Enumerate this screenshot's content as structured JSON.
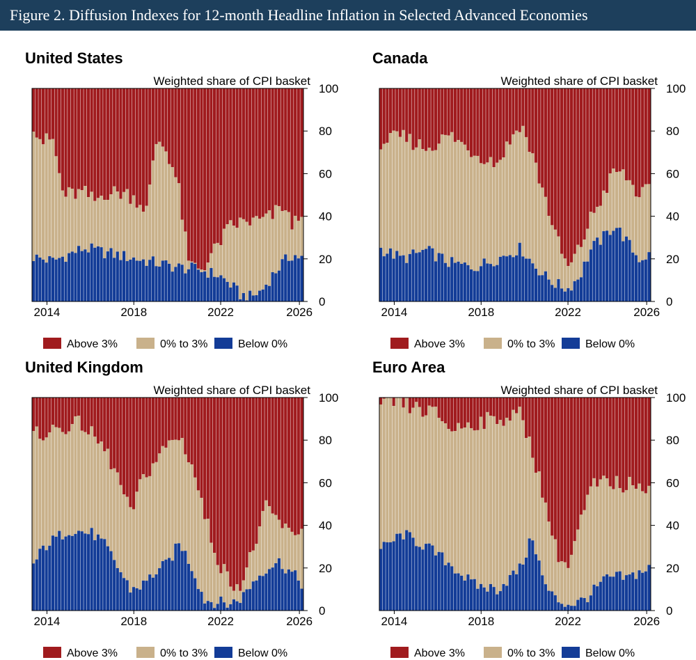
{
  "figure_title": "Figure 2. Diffusion Indexes for 12-month Headline Inflation in Selected Advanced Economies",
  "colors": {
    "above": "#a01b1e",
    "mid": "#c9b18b",
    "below": "#133c97",
    "banner": "#1d3f5c"
  },
  "chart_data": [
    {
      "type": "bar",
      "stacked": true,
      "title": "United States",
      "ylabel": "Weighted share of CPI basket",
      "ylim": [
        0,
        100
      ],
      "yticks": [
        "0",
        "20",
        "40",
        "60",
        "80",
        "100"
      ],
      "xticks": [
        "2014",
        "2018",
        "2022",
        "2026"
      ],
      "legend": [
        "Above 3%",
        "0% to 3%",
        "Below 0%"
      ],
      "legend_position": "bottom",
      "series_anchors": {
        "below": [
          [
            0,
            21
          ],
          [
            2,
            19
          ],
          [
            5,
            25
          ],
          [
            8,
            22
          ],
          [
            10,
            20
          ],
          [
            12,
            18
          ],
          [
            14,
            16
          ],
          [
            16,
            15
          ],
          [
            18,
            12
          ],
          [
            19,
            8
          ],
          [
            20,
            3
          ],
          [
            21,
            2
          ],
          [
            22,
            5
          ],
          [
            23,
            12
          ],
          [
            24,
            18
          ],
          [
            25,
            22
          ],
          [
            26,
            20
          ],
          [
            27,
            17
          ],
          [
            28,
            15
          ]
        ],
        "top": [
          [
            0,
            85
          ],
          [
            1,
            75
          ],
          [
            2,
            76
          ],
          [
            3,
            50
          ],
          [
            5,
            51
          ],
          [
            6,
            47
          ],
          [
            7,
            51
          ],
          [
            9,
            51
          ],
          [
            10,
            48
          ],
          [
            11,
            43
          ],
          [
            12,
            77
          ],
          [
            13,
            70
          ],
          [
            14,
            55
          ],
          [
            15,
            18
          ],
          [
            16,
            14
          ],
          [
            17,
            20
          ],
          [
            18,
            28
          ],
          [
            19,
            35
          ],
          [
            20,
            37
          ],
          [
            22,
            38
          ],
          [
            23,
            40
          ],
          [
            24,
            45
          ],
          [
            25,
            35
          ],
          [
            26,
            45
          ]
        ]
      }
    },
    {
      "type": "bar",
      "stacked": true,
      "title": "Canada",
      "ylabel": "Weighted share of CPI basket",
      "ylim": [
        0,
        100
      ],
      "yticks": [
        "0",
        "20",
        "40",
        "60",
        "80",
        "100"
      ],
      "xticks": [
        "2014",
        "2018",
        "2022",
        "2026"
      ],
      "legend": [
        "Above 3%",
        "0% to 3%",
        "Below 0%"
      ],
      "legend_position": "bottom",
      "series_anchors": {
        "below": [
          [
            0,
            25
          ],
          [
            2,
            20
          ],
          [
            4,
            24
          ],
          [
            6,
            18
          ],
          [
            8,
            16
          ],
          [
            10,
            20
          ],
          [
            12,
            25
          ],
          [
            13,
            18
          ],
          [
            14,
            12
          ],
          [
            15,
            8
          ],
          [
            16,
            6
          ],
          [
            17,
            12
          ],
          [
            18,
            25
          ],
          [
            19,
            30
          ],
          [
            20,
            36
          ],
          [
            21,
            28
          ],
          [
            22,
            20
          ],
          [
            23,
            22
          ]
        ],
        "top": [
          [
            0,
            75
          ],
          [
            2,
            77
          ],
          [
            4,
            72
          ],
          [
            6,
            78
          ],
          [
            8,
            70
          ],
          [
            10,
            65
          ],
          [
            12,
            84
          ],
          [
            13,
            68
          ],
          [
            14,
            50
          ],
          [
            15,
            30
          ],
          [
            16,
            15
          ],
          [
            17,
            25
          ],
          [
            18,
            40
          ],
          [
            19,
            50
          ],
          [
            20,
            62
          ],
          [
            21,
            58
          ],
          [
            22,
            50
          ],
          [
            23,
            52
          ]
        ]
      }
    },
    {
      "type": "bar",
      "stacked": true,
      "title": "United Kingdom",
      "ylabel": "Weighted share of CPI basket",
      "ylim": [
        0,
        100
      ],
      "yticks": [
        "0",
        "20",
        "40",
        "60",
        "80",
        "100"
      ],
      "xticks": [
        "2014",
        "2018",
        "2022",
        "2026"
      ],
      "legend": [
        "Above 3%",
        "0% to 3%",
        "Below 0%"
      ],
      "legend_position": "bottom",
      "series_anchors": {
        "below": [
          [
            0,
            20
          ],
          [
            1,
            30
          ],
          [
            3,
            38
          ],
          [
            5,
            36
          ],
          [
            6,
            30
          ],
          [
            7,
            20
          ],
          [
            8,
            10
          ],
          [
            9,
            12
          ],
          [
            10,
            18
          ],
          [
            11,
            22
          ],
          [
            12,
            32
          ],
          [
            13,
            20
          ],
          [
            14,
            5
          ],
          [
            15,
            4
          ],
          [
            16,
            3
          ],
          [
            17,
            6
          ],
          [
            18,
            14
          ],
          [
            19,
            20
          ],
          [
            20,
            23
          ],
          [
            21,
            18
          ],
          [
            22,
            12
          ],
          [
            23,
            15
          ]
        ],
        "top": [
          [
            0,
            82
          ],
          [
            2,
            85
          ],
          [
            4,
            88
          ],
          [
            6,
            75
          ],
          [
            7,
            62
          ],
          [
            8,
            45
          ],
          [
            9,
            62
          ],
          [
            10,
            70
          ],
          [
            11,
            78
          ],
          [
            12,
            82
          ],
          [
            13,
            68
          ],
          [
            14,
            45
          ],
          [
            15,
            25
          ],
          [
            16,
            14
          ],
          [
            17,
            12
          ],
          [
            18,
            30
          ],
          [
            19,
            48
          ],
          [
            20,
            42
          ],
          [
            21,
            35
          ],
          [
            22,
            40
          ]
        ]
      }
    },
    {
      "type": "bar",
      "stacked": true,
      "title": "Euro Area",
      "ylabel": "Weighted share of CPI basket",
      "ylim": [
        0,
        100
      ],
      "yticks": [
        "0",
        "20",
        "40",
        "60",
        "80",
        "100"
      ],
      "xticks": [
        "2014",
        "2018",
        "2022",
        "2026"
      ],
      "legend": [
        "Above 3%",
        "0% to 3%",
        "Below 0%"
      ],
      "legend_position": "bottom",
      "series_anchors": {
        "below": [
          [
            0,
            28
          ],
          [
            2,
            36
          ],
          [
            4,
            30
          ],
          [
            6,
            22
          ],
          [
            8,
            12
          ],
          [
            10,
            10
          ],
          [
            12,
            20
          ],
          [
            13,
            35
          ],
          [
            14,
            12
          ],
          [
            15,
            5
          ],
          [
            16,
            3
          ],
          [
            17,
            4
          ],
          [
            18,
            8
          ],
          [
            19,
            14
          ],
          [
            20,
            16
          ],
          [
            21,
            15
          ],
          [
            22,
            18
          ],
          [
            23,
            20
          ]
        ],
        "top": [
          [
            0,
            94
          ],
          [
            1,
            98
          ],
          [
            3,
            95
          ],
          [
            5,
            92
          ],
          [
            6,
            85
          ],
          [
            8,
            88
          ],
          [
            10,
            90
          ],
          [
            12,
            92
          ],
          [
            13,
            75
          ],
          [
            14,
            52
          ],
          [
            15,
            28
          ],
          [
            16,
            20
          ],
          [
            17,
            40
          ],
          [
            18,
            58
          ],
          [
            19,
            60
          ],
          [
            20,
            60
          ],
          [
            21,
            58
          ],
          [
            22,
            62
          ],
          [
            23,
            55
          ]
        ]
      }
    }
  ]
}
